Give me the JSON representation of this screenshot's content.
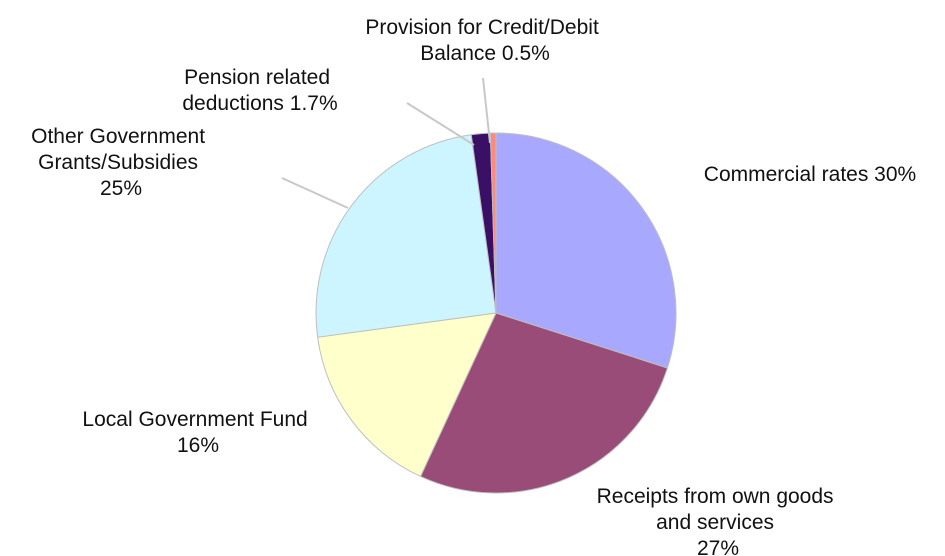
{
  "chart_data": {
    "type": "pie",
    "title": "",
    "start": "12 o'clock, clockwise",
    "slices": [
      {
        "label_lines": [
          "Commercial rates 30%"
        ],
        "value": 30,
        "color": "#a8a8ff"
      },
      {
        "label_lines": [
          "Receipts from own goods",
          "and services",
          "27%"
        ],
        "value": 27,
        "color": "#994c78"
      },
      {
        "label_lines": [
          "Local Government Fund",
          "16%"
        ],
        "value": 16,
        "color": "#ffffcc"
      },
      {
        "label_lines": [
          "Other Government",
          "Grants/Subsidies",
          "25%"
        ],
        "value": 25,
        "color": "#ccf5ff"
      },
      {
        "label_lines": [
          "Pension related",
          "deductions 1.7%"
        ],
        "value": 1.7,
        "color": "#3a0f66"
      },
      {
        "label_lines": [
          "Provision for Credit/Debit",
          "Balance 0.5%"
        ],
        "value": 0.5,
        "color": "#ff8a7a"
      }
    ]
  }
}
